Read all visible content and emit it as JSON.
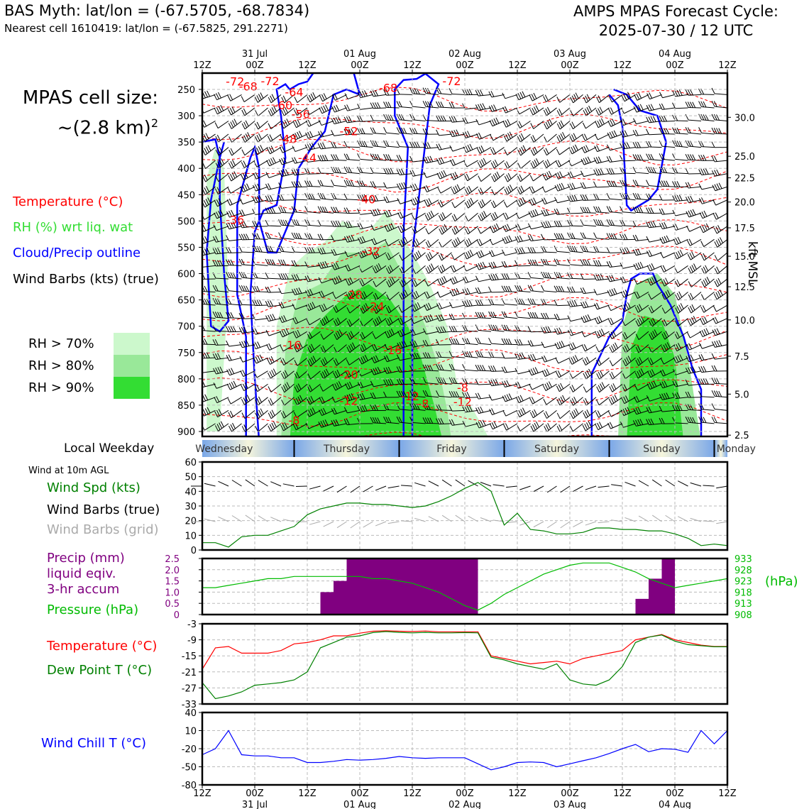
{
  "header": {
    "title_left": "BAS Myth: lat/lon = (-67.5705, -68.7834)",
    "subtitle_left": "Nearest cell 1610419: lat/lon = (-67.5825, 291.2271)",
    "title_right_line1": "AMPS MPAS Forecast Cycle:",
    "title_right_line2": "2025-07-30 / 12 UTC"
  },
  "cell_size": {
    "line1": "MPAS cell size:",
    "line2": "~(2.8 km)",
    "sup": "2"
  },
  "legend": {
    "temperature": {
      "label": "Temperature (°C)",
      "color": "#ff0000"
    },
    "rh": {
      "label": "RH (%) wrt liq. wat",
      "color": "#33dd33"
    },
    "cloud": {
      "label": "Cloud/Precip outline",
      "color": "#0000ff"
    },
    "wind": {
      "label": "Wind Barbs (kts) (true)",
      "color": "#000000"
    },
    "rh70": {
      "label": "RH > 70%",
      "color": "#ccf8cc"
    },
    "rh80": {
      "label": "RH > 80%",
      "color": "#99e899"
    },
    "rh90": {
      "label": "RH > 90%",
      "color": "#33dd33"
    }
  },
  "local_weekday_label": "Local Weekday",
  "weekdays": [
    "Wednesday",
    "Thursday",
    "Friday",
    "Saturday",
    "Sunday",
    "Monday"
  ],
  "wind10m_header": "Wind at 10m AGL",
  "panel_labels": {
    "wind_spd": "Wind Spd (kts)",
    "wind_true": "Wind Barbs (true)",
    "wind_grid": "Wind Barbs (grid)",
    "precip1": "Precip (mm)",
    "precip2": "liquid eqiv.",
    "precip3": "3-hr accum",
    "pressure": "Pressure (hPa)",
    "pressure_unit": "(hPa)",
    "temp": "Temperature (°C)",
    "dew": "Dew Point T (°C)",
    "chill": "Wind Chill T (°C)"
  },
  "axis_right_label": "kft MSL",
  "chart_data": [
    {
      "type": "heatmap",
      "title": "Time–pressure cross section",
      "x_ticks_top": [
        {
          "hour": 0,
          "label": "12Z",
          "date": ""
        },
        {
          "hour": 12,
          "label": "00Z",
          "date": "31 Jul"
        },
        {
          "hour": 24,
          "label": "12Z",
          "date": ""
        },
        {
          "hour": 36,
          "label": "00Z",
          "date": "01 Aug"
        },
        {
          "hour": 48,
          "label": "12Z",
          "date": ""
        },
        {
          "hour": 60,
          "label": "00Z",
          "date": "02 Aug"
        },
        {
          "hour": 72,
          "label": "12Z",
          "date": ""
        },
        {
          "hour": 84,
          "label": "00Z",
          "date": "03 Aug"
        },
        {
          "hour": 96,
          "label": "12Z",
          "date": ""
        },
        {
          "hour": 108,
          "label": "00Z",
          "date": "04 Aug"
        },
        {
          "hour": 120,
          "label": "12Z",
          "date": ""
        }
      ],
      "y_pressure_ticks": [
        250,
        300,
        350,
        400,
        450,
        500,
        550,
        600,
        650,
        700,
        750,
        800,
        850,
        900
      ],
      "y_kft_ticks": [
        {
          "p": 907,
          "label": "2.5"
        },
        {
          "p": 829,
          "label": "5.0"
        },
        {
          "p": 757,
          "label": "7.5"
        },
        {
          "p": 688,
          "label": "10.0"
        },
        {
          "p": 625,
          "label": "12.5"
        },
        {
          "p": 567,
          "label": "15.0"
        },
        {
          "p": 513,
          "label": "17.5"
        },
        {
          "p": 464,
          "label": "20.0"
        },
        {
          "p": 418,
          "label": "22.5"
        },
        {
          "p": 377,
          "label": "25.0"
        },
        {
          "p": 303,
          "label": "30.0"
        }
      ],
      "temperature_contour_labels": [
        {
          "h": 7.5,
          "p": 236,
          "v": "-72"
        },
        {
          "h": 10.5,
          "p": 245,
          "v": "-68"
        },
        {
          "h": 15.5,
          "p": 235,
          "v": "-72"
        },
        {
          "h": 21,
          "p": 256,
          "v": "-64"
        },
        {
          "h": 18.5,
          "p": 281,
          "v": "-60"
        },
        {
          "h": 22.5,
          "p": 298,
          "v": "-56"
        },
        {
          "h": 19.5,
          "p": 345,
          "v": "-48"
        },
        {
          "h": 24,
          "p": 381,
          "v": "-44"
        },
        {
          "h": 33.5,
          "p": 330,
          "v": "-52"
        },
        {
          "h": 42.5,
          "p": 248,
          "v": "-68"
        },
        {
          "h": 57,
          "p": 235,
          "v": "-72"
        },
        {
          "h": 37.5,
          "p": 460,
          "v": "-40"
        },
        {
          "h": 7.5,
          "p": 499,
          "v": "-36"
        },
        {
          "h": 38.5,
          "p": 558,
          "v": "-32"
        },
        {
          "h": 34.5,
          "p": 641,
          "v": "-28"
        },
        {
          "h": 39.5,
          "p": 663,
          "v": "-24"
        },
        {
          "h": 20.5,
          "p": 737,
          "v": "-16"
        },
        {
          "h": 43.5,
          "p": 746,
          "v": "-16"
        },
        {
          "h": 33.5,
          "p": 793,
          "v": "-20"
        },
        {
          "h": 33.5,
          "p": 843,
          "v": "-12"
        },
        {
          "h": 47.5,
          "p": 834,
          "v": "-12"
        },
        {
          "h": 50.5,
          "p": 848,
          "v": "-8"
        },
        {
          "h": 21,
          "p": 880,
          "v": "-8"
        },
        {
          "h": 59.5,
          "p": 818,
          "v": "-8"
        },
        {
          "h": 59.5,
          "p": 845,
          "v": "-12"
        }
      ],
      "series": [
        {
          "name": "Temperature (°C)",
          "kind": "dashed contours",
          "color": "#ff0000"
        },
        {
          "name": "RH (%) wrt liq. wat",
          "kind": "filled contours",
          "levels": [
            70,
            80,
            90
          ]
        },
        {
          "name": "Cloud/Precip outline",
          "kind": "contour",
          "color": "#0000ff"
        },
        {
          "name": "Wind Barbs (kts) (true)",
          "kind": "barbs",
          "color": "#000000"
        }
      ]
    },
    {
      "type": "line",
      "title": "Wind Spd (kts)",
      "ylim": [
        0,
        60
      ],
      "yticks": [
        0,
        10,
        20,
        30,
        40,
        50,
        60
      ],
      "x_hours": [
        0,
        3,
        6,
        9,
        12,
        15,
        18,
        21,
        24,
        27,
        30,
        33,
        36,
        39,
        42,
        45,
        48,
        51,
        54,
        57,
        60,
        63,
        66,
        69,
        72,
        75,
        78,
        81,
        84,
        87,
        90,
        93,
        96,
        99,
        102,
        105,
        108,
        111,
        114,
        117,
        120
      ],
      "values": [
        5,
        5,
        2,
        9,
        10,
        10,
        13,
        16,
        24,
        28,
        30,
        32,
        32,
        31,
        31,
        30,
        29,
        30,
        33,
        37,
        42,
        46,
        40,
        17,
        25,
        14,
        13,
        11,
        11,
        12,
        15,
        15,
        14,
        14,
        13,
        13,
        11,
        8,
        3,
        4,
        3
      ],
      "color": "#008000"
    },
    {
      "type": "bar",
      "title": "Precip (mm) liquid eqiv. 3-hr accum",
      "ylim": [
        0,
        2.5
      ],
      "yticks": [
        0,
        0.5,
        1.0,
        1.5,
        2.0,
        2.5
      ],
      "x_hours": [
        24,
        27,
        30,
        33,
        36,
        39,
        42,
        45,
        48,
        51,
        54,
        57,
        60,
        63,
        102,
        105,
        108
      ],
      "values": [
        0.02,
        0.02,
        1.0,
        1.5,
        2.5,
        2.5,
        2.5,
        2.5,
        2.5,
        2.5,
        2.5,
        2.5,
        2.5,
        2.5,
        0.7,
        1.6,
        2.5
      ],
      "color": "#800080",
      "pressure_series": {
        "name": "Pressure (hPa)",
        "ylim": [
          908,
          933
        ],
        "yticks": [
          908,
          913,
          918,
          923,
          928,
          933
        ],
        "x_hours": [
          0,
          3,
          6,
          9,
          12,
          15,
          18,
          21,
          24,
          27,
          30,
          33,
          36,
          39,
          42,
          45,
          48,
          51,
          54,
          57,
          60,
          63,
          66,
          69,
          72,
          75,
          78,
          81,
          84,
          87,
          90,
          93,
          96,
          99,
          102,
          105,
          108,
          111,
          114,
          117,
          120
        ],
        "values": [
          920,
          920,
          921,
          922,
          923,
          924,
          924,
          925,
          925,
          925,
          925,
          925,
          925,
          924,
          924,
          923,
          922,
          920,
          918,
          915,
          912,
          910,
          913,
          917,
          920,
          923,
          926,
          928,
          930,
          931,
          931,
          931,
          929,
          927,
          924,
          922,
          920,
          921,
          922,
          923,
          924
        ],
        "color": "#00bb00"
      }
    },
    {
      "type": "line",
      "title": "Temperature (°C) / Dew Point T (°C)",
      "ylim": [
        -33,
        -3
      ],
      "yticks": [
        -33,
        -27,
        -21,
        -15,
        -9,
        -3
      ],
      "x_hours": [
        0,
        3,
        6,
        9,
        12,
        15,
        18,
        21,
        24,
        27,
        30,
        33,
        36,
        39,
        42,
        45,
        48,
        51,
        54,
        57,
        60,
        63,
        66,
        69,
        72,
        75,
        78,
        81,
        84,
        87,
        90,
        93,
        96,
        99,
        102,
        105,
        108,
        111,
        114,
        117,
        120
      ],
      "series": [
        {
          "name": "Temperature (°C)",
          "color": "#ff0000",
          "values": [
            -20,
            -12,
            -11.5,
            -14,
            -14,
            -14,
            -13,
            -10.5,
            -10,
            -9,
            -7.5,
            -7.5,
            -6.5,
            -5.8,
            -5.6,
            -5.8,
            -5.9,
            -5.7,
            -6,
            -6,
            -6,
            -6,
            -15,
            -16,
            -17,
            -18,
            -17.5,
            -17,
            -18,
            -16,
            -15,
            -14,
            -13,
            -9,
            -8,
            -7,
            -9,
            -10,
            -11,
            -11.5,
            -11.5
          ]
        },
        {
          "name": "Dew Point T (°C)",
          "color": "#008000",
          "values": [
            -25,
            -31,
            -30,
            -28.5,
            -26,
            -25.5,
            -25,
            -24,
            -21,
            -12,
            -10,
            -8,
            -7.5,
            -6.3,
            -5.9,
            -6.2,
            -6.4,
            -6.2,
            -6.4,
            -6.4,
            -6.3,
            -6.4,
            -15.5,
            -16.5,
            -18,
            -19,
            -20,
            -18,
            -24,
            -25.5,
            -26,
            -24,
            -19,
            -10,
            -8,
            -7.2,
            -9.5,
            -10.8,
            -11.2,
            -11.6,
            -11.6
          ]
        }
      ]
    },
    {
      "type": "line",
      "title": "Wind Chill T (°C)",
      "ylim": [
        -80,
        40
      ],
      "yticks": [
        -80,
        -50,
        -20,
        10,
        40
      ],
      "x_hours": [
        0,
        3,
        6,
        9,
        12,
        15,
        18,
        21,
        24,
        27,
        30,
        33,
        36,
        39,
        42,
        45,
        48,
        51,
        54,
        57,
        60,
        63,
        66,
        69,
        72,
        75,
        78,
        81,
        84,
        87,
        90,
        93,
        96,
        99,
        102,
        105,
        108,
        111,
        114,
        117,
        120
      ],
      "values": [
        -30,
        -20,
        10,
        -30,
        -32,
        -32,
        -35,
        -35,
        -43,
        -43,
        -41,
        -38,
        -39,
        -38,
        -36,
        -33,
        -35,
        -36,
        -35,
        -35,
        -35,
        -45,
        -55,
        -50,
        -43,
        -42,
        -43,
        -50,
        -45,
        -40,
        -35,
        -28,
        -20,
        -13,
        -25,
        -20,
        -21,
        -26,
        10,
        -12,
        10
      ],
      "color": "#0000ff"
    }
  ]
}
